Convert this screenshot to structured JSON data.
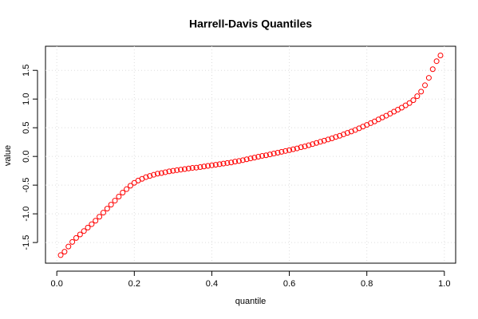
{
  "chart_data": {
    "type": "scatter",
    "title": "Harrell-Davis Quantiles",
    "x_label": "quantile",
    "y_label": "value",
    "color": "#ff0000",
    "grid": true,
    "xlim": [
      -0.0292,
      1.0292
    ],
    "ylim": [
      -1.86,
      1.92
    ],
    "xticks": [
      {
        "value": 0,
        "label": "0.0"
      },
      0.2,
      0.4,
      0.6,
      0.8,
      {
        "value": 1,
        "label": "1.0"
      }
    ],
    "yticks": [
      -1.5,
      {
        "value": -1,
        "label": "-1.0"
      },
      -0.5,
      {
        "value": 0,
        "label": "0.0"
      },
      0.5,
      {
        "value": 1,
        "label": "1.0"
      },
      1.5
    ],
    "x": [
      0.01,
      0.02,
      0.03,
      0.04,
      0.05,
      0.06,
      0.07,
      0.08,
      0.09,
      0.1,
      0.11,
      0.12,
      0.13,
      0.14,
      0.15,
      0.16,
      0.17,
      0.18,
      0.19,
      0.2,
      0.21,
      0.22,
      0.23,
      0.24,
      0.25,
      0.26,
      0.27,
      0.28,
      0.29,
      0.3,
      0.31,
      0.32,
      0.33,
      0.34,
      0.35,
      0.36,
      0.37,
      0.38,
      0.39,
      0.4,
      0.41,
      0.42,
      0.43,
      0.44,
      0.45,
      0.46,
      0.47,
      0.48,
      0.49,
      0.5,
      0.51,
      0.52,
      0.53,
      0.54,
      0.55,
      0.56,
      0.57,
      0.58,
      0.59,
      0.6,
      0.61,
      0.62,
      0.63,
      0.64,
      0.65,
      0.66,
      0.67,
      0.68,
      0.69,
      0.7,
      0.71,
      0.72,
      0.73,
      0.74,
      0.75,
      0.76,
      0.77,
      0.78,
      0.79,
      0.8,
      0.81,
      0.82,
      0.83,
      0.84,
      0.85,
      0.86,
      0.87,
      0.88,
      0.89,
      0.9,
      0.91,
      0.92,
      0.93,
      0.94,
      0.95,
      0.96,
      0.97,
      0.98,
      0.99
    ],
    "values": [
      -1.72,
      -1.66,
      -1.57,
      -1.49,
      -1.42,
      -1.36,
      -1.3,
      -1.24,
      -1.18,
      -1.12,
      -1.05,
      -0.98,
      -0.91,
      -0.84,
      -0.77,
      -0.7,
      -0.63,
      -0.57,
      -0.51,
      -0.46,
      -0.42,
      -0.39,
      -0.36,
      -0.34,
      -0.32,
      -0.3,
      -0.29,
      -0.275,
      -0.26,
      -0.25,
      -0.24,
      -0.23,
      -0.22,
      -0.21,
      -0.2,
      -0.195,
      -0.185,
      -0.175,
      -0.165,
      -0.155,
      -0.145,
      -0.135,
      -0.125,
      -0.115,
      -0.105,
      -0.09,
      -0.08,
      -0.065,
      -0.05,
      -0.035,
      -0.02,
      -0.005,
      0.01,
      0.02,
      0.035,
      0.05,
      0.065,
      0.08,
      0.095,
      0.11,
      0.125,
      0.14,
      0.16,
      0.175,
      0.195,
      0.215,
      0.235,
      0.255,
      0.275,
      0.295,
      0.315,
      0.34,
      0.36,
      0.385,
      0.41,
      0.435,
      0.46,
      0.49,
      0.52,
      0.55,
      0.58,
      0.61,
      0.645,
      0.68,
      0.71,
      0.745,
      0.78,
      0.815,
      0.85,
      0.89,
      0.93,
      0.98,
      1.05,
      1.13,
      1.24,
      1.37,
      1.52,
      1.66,
      1.76
    ]
  }
}
